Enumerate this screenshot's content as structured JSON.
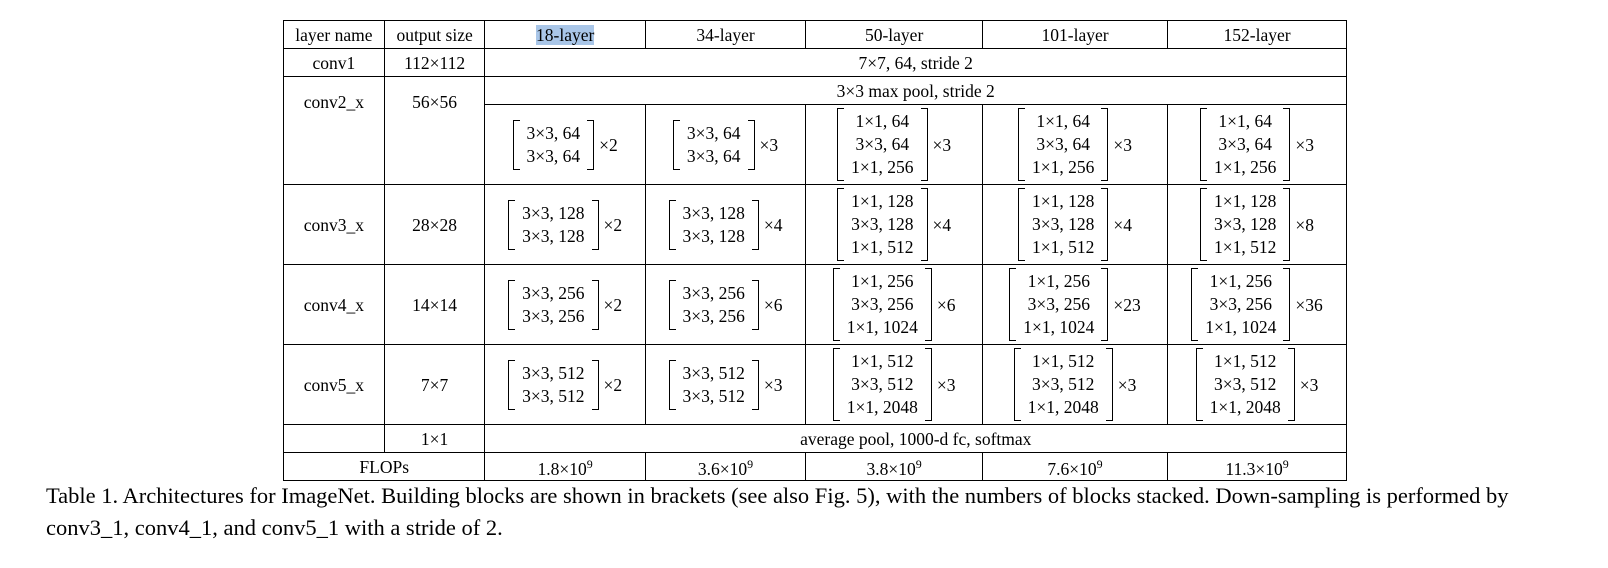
{
  "table": {
    "header": [
      "layer name",
      "output size",
      "18-layer",
      "34-layer",
      "50-layer",
      "101-layer",
      "152-layer"
    ],
    "conv1": {
      "name": "conv1",
      "size": "112×112",
      "spec": "7×7, 64, stride 2"
    },
    "pool": {
      "spec": "3×3 max pool, stride 2"
    },
    "stages": [
      {
        "name": "conv2_x",
        "size": "56×56",
        "cells": [
          {
            "lines": [
              "3×3, 64",
              "3×3, 64"
            ],
            "mult": "×2"
          },
          {
            "lines": [
              "3×3, 64",
              "3×3, 64"
            ],
            "mult": "×3"
          },
          {
            "lines": [
              "1×1, 64",
              "3×3, 64",
              "1×1, 256"
            ],
            "mult": "×3"
          },
          {
            "lines": [
              "1×1, 64",
              "3×3, 64",
              "1×1, 256"
            ],
            "mult": "×3"
          },
          {
            "lines": [
              "1×1, 64",
              "3×3, 64",
              "1×1, 256"
            ],
            "mult": "×3"
          }
        ]
      },
      {
        "name": "conv3_x",
        "size": "28×28",
        "cells": [
          {
            "lines": [
              "3×3, 128",
              "3×3, 128"
            ],
            "mult": "×2"
          },
          {
            "lines": [
              "3×3, 128",
              "3×3, 128"
            ],
            "mult": "×4"
          },
          {
            "lines": [
              "1×1, 128",
              "3×3, 128",
              "1×1, 512"
            ],
            "mult": "×4"
          },
          {
            "lines": [
              "1×1, 128",
              "3×3, 128",
              "1×1, 512"
            ],
            "mult": "×4"
          },
          {
            "lines": [
              "1×1, 128",
              "3×3, 128",
              "1×1, 512"
            ],
            "mult": "×8"
          }
        ]
      },
      {
        "name": "conv4_x",
        "size": "14×14",
        "cells": [
          {
            "lines": [
              "3×3, 256",
              "3×3, 256"
            ],
            "mult": "×2"
          },
          {
            "lines": [
              "3×3, 256",
              "3×3, 256"
            ],
            "mult": "×6"
          },
          {
            "lines": [
              "1×1, 256",
              "3×3, 256",
              "1×1, 1024"
            ],
            "mult": "×6"
          },
          {
            "lines": [
              "1×1, 256",
              "3×3, 256",
              "1×1, 1024"
            ],
            "mult": "×23"
          },
          {
            "lines": [
              "1×1, 256",
              "3×3, 256",
              "1×1, 1024"
            ],
            "mult": "×36"
          }
        ]
      },
      {
        "name": "conv5_x",
        "size": "7×7",
        "cells": [
          {
            "lines": [
              "3×3, 512",
              "3×3, 512"
            ],
            "mult": "×2"
          },
          {
            "lines": [
              "3×3, 512",
              "3×3, 512"
            ],
            "mult": "×3"
          },
          {
            "lines": [
              "1×1, 512",
              "3×3, 512",
              "1×1, 2048"
            ],
            "mult": "×3"
          },
          {
            "lines": [
              "1×1, 512",
              "3×3, 512",
              "1×1, 2048"
            ],
            "mult": "×3"
          },
          {
            "lines": [
              "1×1, 512",
              "3×3, 512",
              "1×1, 2048"
            ],
            "mult": "×3"
          }
        ]
      }
    ],
    "final": {
      "size": "1×1",
      "spec": "average pool, 1000-d fc, softmax"
    },
    "flops": {
      "label": "FLOPs",
      "values": [
        {
          "base": "1.8×10",
          "exp": "9"
        },
        {
          "base": "3.6×10",
          "exp": "9"
        },
        {
          "base": "3.8×10",
          "exp": "9"
        },
        {
          "base": "7.6×10",
          "exp": "9"
        },
        {
          "base": "11.3×10",
          "exp": "9"
        }
      ]
    },
    "selection_color": "#a9c6e8"
  },
  "caption": "Table 1. Architectures for ImageNet. Building blocks are shown in brackets (see also Fig. 5), with the numbers of blocks stacked. Down-sampling is performed by conv3_1, conv4_1, and conv5_1 with a stride of 2."
}
